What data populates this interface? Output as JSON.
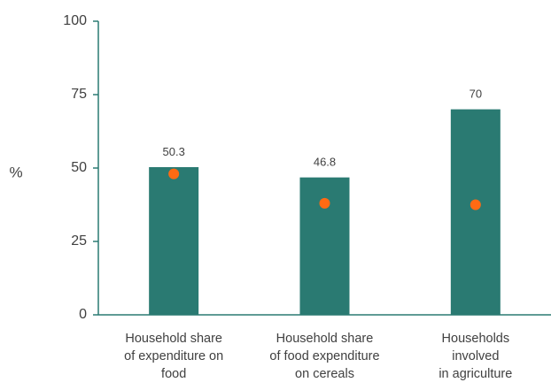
{
  "chart_data": {
    "type": "bar",
    "ylabel": "%",
    "ylim": [
      0,
      100
    ],
    "yticks": [
      0,
      25,
      50,
      75,
      100
    ],
    "categories": [
      [
        "Household share",
        "of expenditure on",
        "food"
      ],
      [
        "Household share",
        "of food expenditure",
        "on cereals"
      ],
      [
        "Households",
        "involved",
        "in agriculture"
      ]
    ],
    "series": [
      {
        "type": "bar",
        "values": [
          50.3,
          46.8,
          70
        ],
        "labels": [
          "50.3",
          "46.8",
          "70"
        ],
        "color": "#2a7a72"
      },
      {
        "type": "scatter",
        "values": [
          48,
          38,
          37.5
        ],
        "color": "#ff6a13"
      }
    ],
    "grid": false,
    "legend": "none"
  }
}
